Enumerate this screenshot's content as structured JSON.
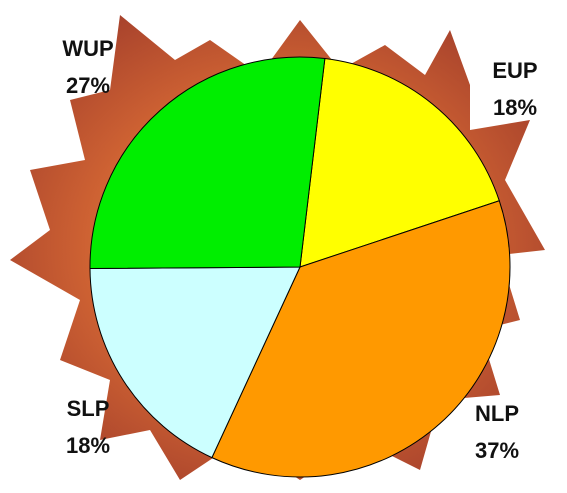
{
  "chart_data": {
    "type": "pie",
    "categories": [
      "EUP",
      "NLP",
      "SLP",
      "WUP"
    ],
    "values": [
      18,
      37,
      18,
      27
    ],
    "value_labels": [
      "18%",
      "37%",
      "18%",
      "27%"
    ],
    "colors": [
      "#ffff00",
      "#ff9900",
      "#ccffff",
      "#00ee00"
    ]
  }
}
